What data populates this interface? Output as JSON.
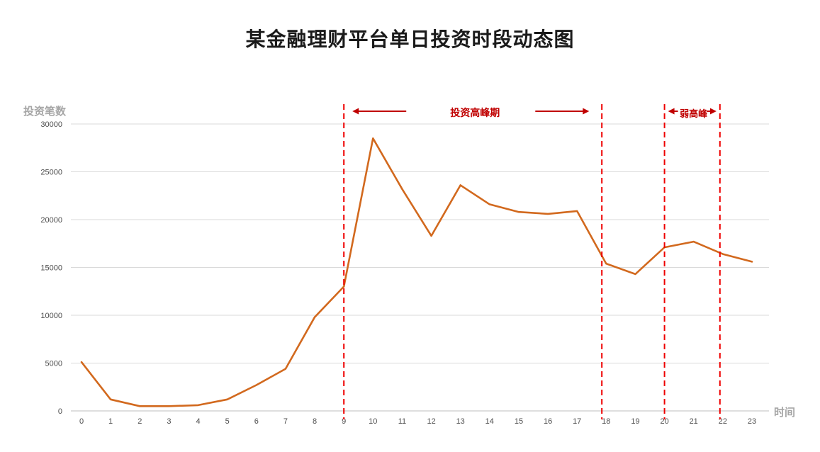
{
  "chart_data": {
    "type": "line",
    "title": "某金融理财平台单日投资时段动态图",
    "ylabel": "投资笔数",
    "xlabel": "时间",
    "x": [
      0,
      1,
      2,
      3,
      4,
      5,
      6,
      7,
      8,
      9,
      10,
      11,
      12,
      13,
      14,
      15,
      16,
      17,
      18,
      19,
      20,
      21,
      22,
      23
    ],
    "values": [
      5100,
      1200,
      500,
      500,
      600,
      1200,
      2700,
      4400,
      9800,
      13000,
      28500,
      23200,
      18300,
      23600,
      21600,
      20800,
      20600,
      20900,
      15400,
      14300,
      17100,
      17700,
      16400,
      15600
    ],
    "ylim": [
      0,
      30000
    ],
    "yticks": [
      0,
      5000,
      10000,
      15000,
      20000,
      25000,
      30000
    ],
    "grid": "horizontal",
    "legend": "none",
    "annotations": {
      "peak": {
        "label": "投资高峰期",
        "start_hour": 9,
        "end_hour": 18
      },
      "weak_peak": {
        "label": "弱高峰",
        "start_hour": 20,
        "end_hour": 22
      }
    },
    "colors": {
      "line": "#d2691e",
      "boundary_dash": "#ee0000",
      "annotation": "#c00000",
      "grid": "#d9d9d9",
      "axis": "#bdbdbd",
      "tick_text": "#4d4d4d",
      "axis_label": "#a6a6a6",
      "title": "#1a1a1a"
    }
  }
}
